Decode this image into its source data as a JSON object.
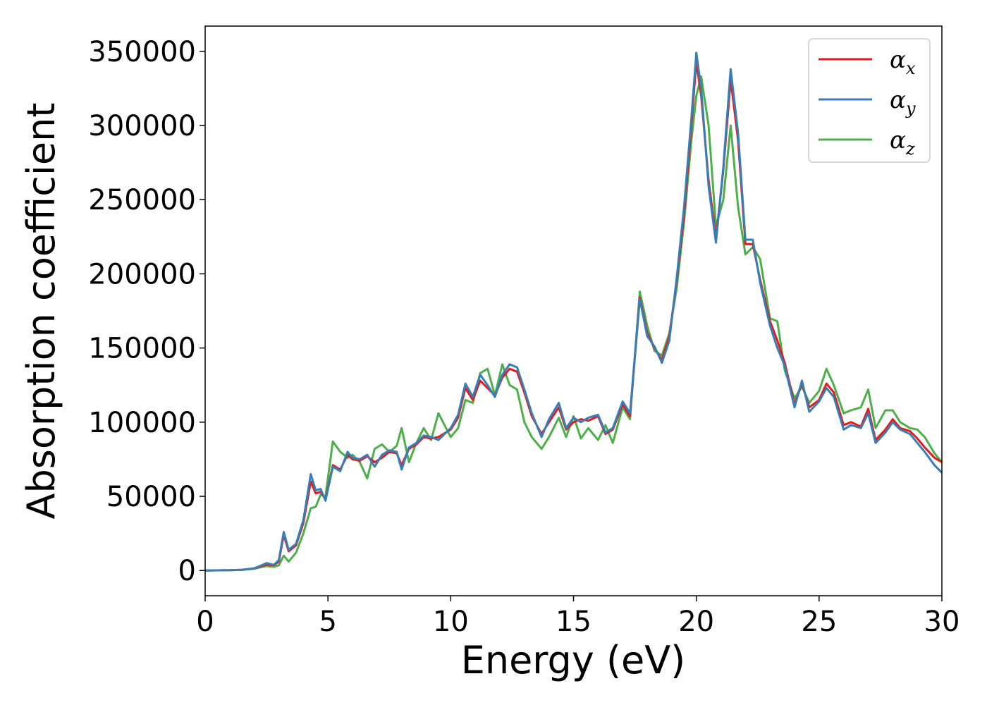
{
  "chart_data": {
    "type": "line",
    "title": "",
    "xlabel": "Energy (eV)",
    "ylabel": "Absorption coefficient",
    "xlim": [
      0,
      30
    ],
    "ylim": [
      -17000,
      367000
    ],
    "xticks": [
      0,
      5,
      10,
      15,
      20,
      25,
      30
    ],
    "yticks": [
      0,
      50000,
      100000,
      150000,
      200000,
      250000,
      300000,
      350000
    ],
    "grid": false,
    "legend_position": "top-right",
    "series": [
      {
        "name": "α_x",
        "legend_base": "α",
        "legend_sub": "x",
        "color": "#e41a1c",
        "x": [
          0,
          1,
          1.5,
          2,
          2.2,
          2.5,
          2.8,
          3.0,
          3.2,
          3.4,
          3.7,
          4.0,
          4.3,
          4.5,
          4.7,
          4.9,
          5.2,
          5.5,
          5.8,
          6.0,
          6.3,
          6.6,
          6.9,
          7.2,
          7.5,
          7.8,
          8.0,
          8.3,
          8.6,
          8.9,
          9.2,
          9.5,
          10.0,
          10.3,
          10.6,
          10.9,
          11.2,
          11.5,
          11.8,
          12.1,
          12.4,
          12.7,
          13.0,
          13.3,
          13.7,
          14.0,
          14.4,
          14.7,
          15.0,
          15.3,
          15.6,
          16.0,
          16.3,
          16.6,
          17.0,
          17.3,
          17.7,
          18.0,
          18.3,
          18.6,
          18.9,
          19.2,
          19.5,
          19.8,
          20.0,
          20.2,
          20.5,
          20.8,
          21.1,
          21.4,
          21.7,
          22.0,
          22.3,
          22.6,
          23.0,
          23.3,
          23.6,
          24.0,
          24.3,
          24.6,
          25.0,
          25.3,
          25.6,
          26.0,
          26.3,
          26.7,
          27.0,
          27.3,
          27.7,
          28.0,
          28.3,
          28.7,
          29.0,
          29.3,
          29.7,
          30.0
        ],
        "y": [
          0,
          200,
          500,
          1500,
          2500,
          4000,
          3500,
          6000,
          24000,
          13000,
          17000,
          32000,
          60000,
          52000,
          53000,
          48000,
          71000,
          68000,
          78000,
          75000,
          74000,
          77000,
          73000,
          76000,
          80000,
          79000,
          71000,
          82000,
          85000,
          90000,
          89000,
          90000,
          95000,
          103000,
          123000,
          115000,
          128000,
          123000,
          118000,
          130000,
          136000,
          134000,
          120000,
          104000,
          92000,
          100000,
          110000,
          95000,
          100000,
          102000,
          101000,
          104000,
          92000,
          95000,
          112000,
          104000,
          184000,
          160000,
          150000,
          142000,
          158000,
          195000,
          240000,
          300000,
          343000,
          320000,
          263000,
          224000,
          270000,
          331000,
          290000,
          220000,
          220000,
          196000,
          168000,
          155000,
          140000,
          112000,
          126000,
          110000,
          115000,
          126000,
          120000,
          98000,
          100000,
          97000,
          109000,
          88000,
          95000,
          102000,
          96000,
          94000,
          89000,
          83000,
          76000,
          73000
        ]
      },
      {
        "name": "α_y",
        "legend_base": "α",
        "legend_sub": "y",
        "color": "#377eb8",
        "x": [
          0,
          1,
          1.5,
          2,
          2.2,
          2.5,
          2.8,
          3.0,
          3.2,
          3.4,
          3.7,
          4.0,
          4.3,
          4.5,
          4.7,
          4.9,
          5.2,
          5.5,
          5.8,
          6.0,
          6.3,
          6.6,
          6.9,
          7.2,
          7.5,
          7.8,
          8.0,
          8.3,
          8.6,
          8.9,
          9.2,
          9.5,
          10.0,
          10.3,
          10.6,
          10.9,
          11.2,
          11.5,
          11.8,
          12.1,
          12.4,
          12.7,
          13.0,
          13.3,
          13.7,
          14.0,
          14.4,
          14.7,
          15.0,
          15.3,
          15.6,
          16.0,
          16.3,
          16.6,
          17.0,
          17.3,
          17.7,
          18.0,
          18.3,
          18.6,
          18.9,
          19.2,
          19.5,
          19.8,
          20.0,
          20.2,
          20.5,
          20.8,
          21.1,
          21.4,
          21.7,
          22.0,
          22.3,
          22.6,
          23.0,
          23.3,
          23.6,
          24.0,
          24.3,
          24.6,
          25.0,
          25.3,
          25.6,
          26.0,
          26.3,
          26.7,
          27.0,
          27.3,
          27.7,
          28.0,
          28.3,
          28.7,
          29.0,
          29.3,
          29.7,
          30.0
        ],
        "y": [
          0,
          200,
          500,
          1500,
          2800,
          5000,
          3800,
          7000,
          26000,
          14000,
          18000,
          34000,
          65000,
          54000,
          55000,
          47000,
          70000,
          67000,
          80000,
          76000,
          75000,
          78000,
          70000,
          78000,
          81000,
          80000,
          68000,
          83000,
          86000,
          91000,
          90000,
          88000,
          96000,
          105000,
          126000,
          117000,
          132000,
          125000,
          117000,
          132000,
          139000,
          137000,
          122000,
          106000,
          90000,
          102000,
          113000,
          96000,
          103000,
          100000,
          103000,
          105000,
          93000,
          96000,
          114000,
          106000,
          183000,
          158000,
          151000,
          140000,
          155000,
          197000,
          245000,
          305000,
          349000,
          325000,
          259000,
          221000,
          272000,
          338000,
          295000,
          223000,
          223000,
          194000,
          165000,
          150000,
          138000,
          110000,
          128000,
          107000,
          114000,
          123000,
          117000,
          95000,
          98000,
          96000,
          106000,
          86000,
          93000,
          100000,
          95000,
          92000,
          86000,
          80000,
          71000,
          66000
        ]
      },
      {
        "name": "α_z",
        "legend_base": "α",
        "legend_sub": "z",
        "color": "#4daf4a",
        "x": [
          0,
          1,
          1.5,
          2,
          2.2,
          2.5,
          2.8,
          3.0,
          3.2,
          3.4,
          3.7,
          4.0,
          4.3,
          4.5,
          4.7,
          4.9,
          5.2,
          5.5,
          5.8,
          6.0,
          6.3,
          6.6,
          6.9,
          7.2,
          7.5,
          7.8,
          8.0,
          8.3,
          8.6,
          8.9,
          9.2,
          9.5,
          10.0,
          10.3,
          10.6,
          10.9,
          11.2,
          11.5,
          11.8,
          12.1,
          12.4,
          12.7,
          13.0,
          13.3,
          13.7,
          14.0,
          14.4,
          14.7,
          15.0,
          15.3,
          15.6,
          16.0,
          16.3,
          16.6,
          17.0,
          17.3,
          17.7,
          18.0,
          18.3,
          18.6,
          18.9,
          19.2,
          19.5,
          19.8,
          20.0,
          20.2,
          20.5,
          20.8,
          21.1,
          21.4,
          21.7,
          22.0,
          22.3,
          22.6,
          23.0,
          23.3,
          23.6,
          24.0,
          24.3,
          24.6,
          25.0,
          25.3,
          25.6,
          26.0,
          26.3,
          26.7,
          27.0,
          27.3,
          27.7,
          28.0,
          28.3,
          28.7,
          29.0,
          29.3,
          29.7,
          30.0
        ],
        "y": [
          0,
          200,
          500,
          1200,
          2000,
          3000,
          2500,
          3500,
          10000,
          6000,
          12000,
          25000,
          42000,
          43000,
          51000,
          50000,
          87000,
          80000,
          76000,
          78000,
          73000,
          62000,
          82000,
          85000,
          80000,
          84000,
          96000,
          73000,
          86000,
          96000,
          88000,
          106000,
          90000,
          96000,
          115000,
          113000,
          133000,
          136000,
          118000,
          139000,
          125000,
          122000,
          100000,
          90000,
          82000,
          90000,
          103000,
          90000,
          104000,
          89000,
          96000,
          88000,
          98000,
          86000,
          110000,
          102000,
          188000,
          165000,
          148000,
          145000,
          160000,
          190000,
          235000,
          290000,
          320000,
          333000,
          300000,
          232000,
          250000,
          300000,
          245000,
          213000,
          218000,
          210000,
          170000,
          168000,
          135000,
          116000,
          124000,
          113000,
          121000,
          136000,
          125000,
          106000,
          108000,
          110000,
          122000,
          96000,
          108000,
          108000,
          100000,
          96000,
          95000,
          90000,
          79000,
          73000
        ]
      }
    ]
  }
}
